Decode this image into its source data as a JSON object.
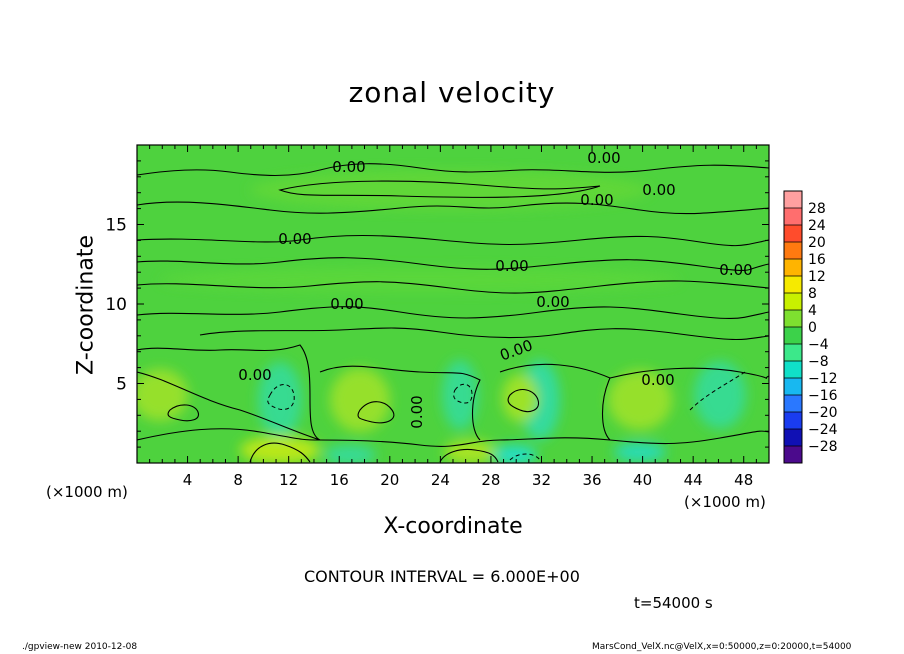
{
  "chart_data": {
    "type": "heatmap",
    "title": "zonal velocity",
    "xlabel": "X-coordinate",
    "ylabel": "Z-coordinate",
    "x_unit_label": "(×1000 m)",
    "x_ticks": [
      4,
      8,
      12,
      16,
      20,
      24,
      28,
      32,
      36,
      40,
      44,
      48
    ],
    "y_ticks": [
      5,
      10,
      15
    ],
    "xlim": [
      0,
      50
    ],
    "ylim": [
      0,
      20
    ],
    "colorbar": {
      "levels": [
        -28,
        -24,
        -20,
        -16,
        -12,
        -8,
        -4,
        0,
        4,
        8,
        12,
        16,
        20,
        24,
        28
      ],
      "colors": [
        "#4b0a8c",
        "#1010b4",
        "#1a3cf0",
        "#2a78ff",
        "#18b8f0",
        "#10e0c8",
        "#3ce88a",
        "#3cd24a",
        "#7ee030",
        "#c8f000",
        "#f6ea00",
        "#ffb400",
        "#ff7a10",
        "#ff4c2c",
        "#ff6e6e",
        "#ffa0a0"
      ]
    },
    "contour_label": "0.00",
    "contour_interval_text": "CONTOUR INTERVAL = 6.000E+00",
    "time_text": "t=54000 s"
  },
  "footer": {
    "left": "./gpview-new 2010-12-08",
    "right": "MarsCond_VelX.nc@VelX,x=0:50000,z=0:20000,t=54000"
  }
}
